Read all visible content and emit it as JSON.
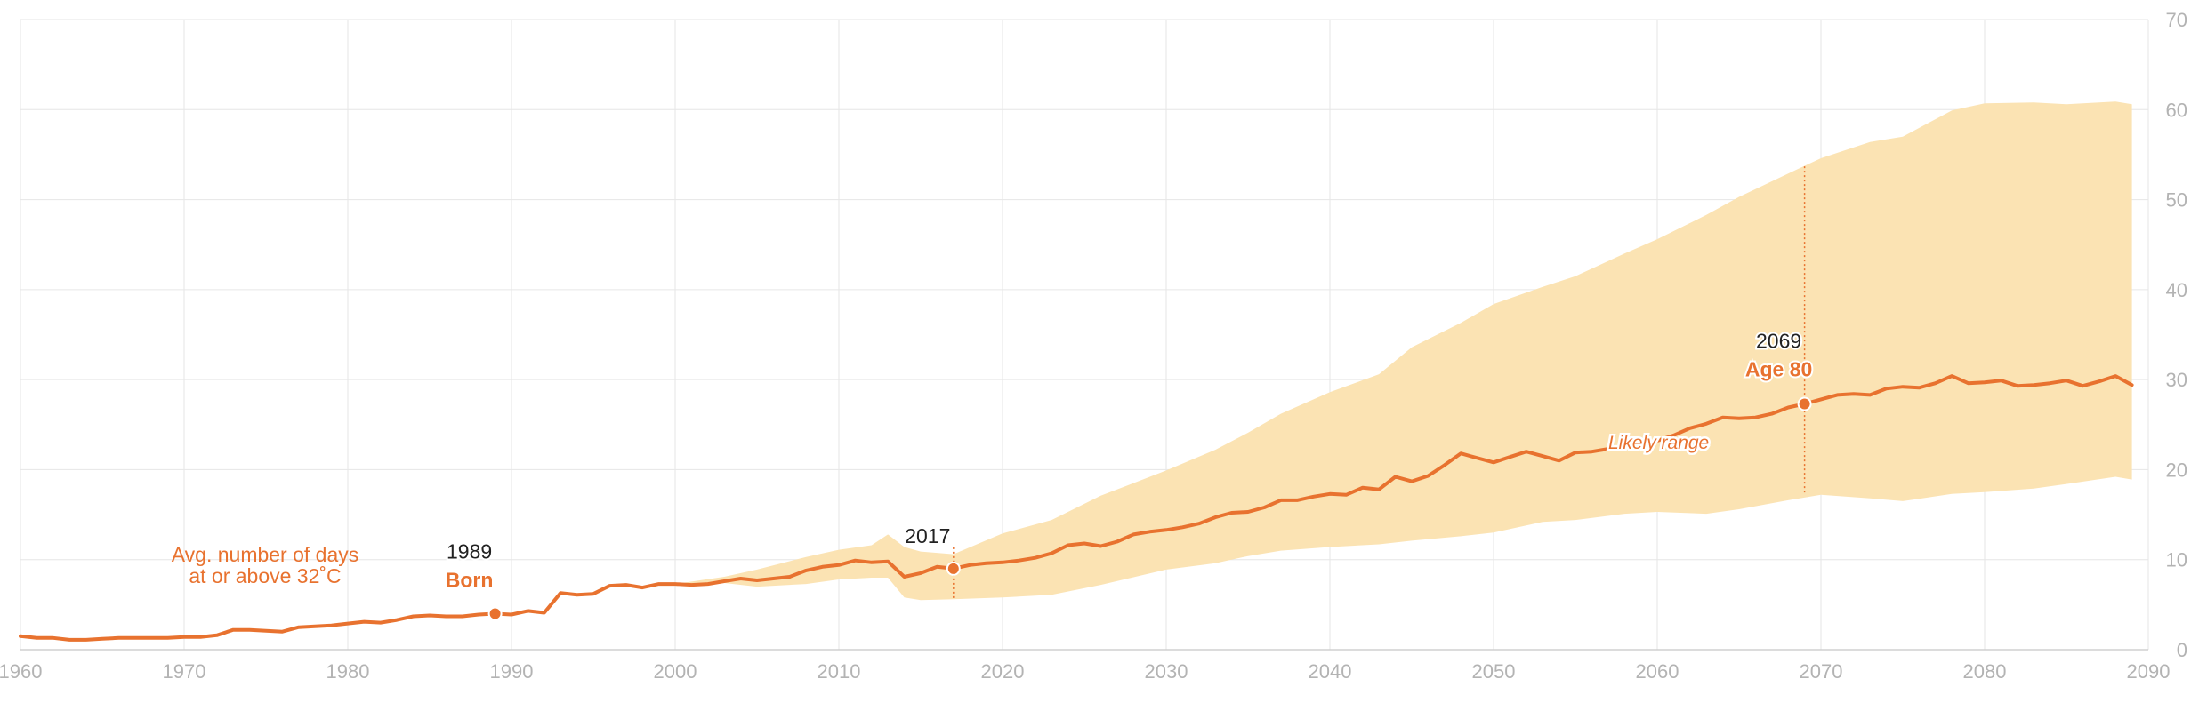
{
  "colors": {
    "line": "#e8722f",
    "band": "#fbe3b3",
    "grid": "#e6e6e6",
    "axis_text": "#b3b3b3",
    "annotation_text": "#222222",
    "white": "#ffffff"
  },
  "chart_data": {
    "type": "line",
    "x_axis": {
      "range": [
        1960,
        2090
      ],
      "ticks": [
        1960,
        1970,
        1980,
        1990,
        2000,
        2010,
        2020,
        2030,
        2040,
        2050,
        2060,
        2070,
        2080,
        2090
      ],
      "tick_labels": [
        "1960",
        "1970",
        "1980",
        "1990",
        "2000",
        "2010",
        "2020",
        "2030",
        "2040",
        "2050",
        "2060",
        "2070",
        "2080",
        "2090"
      ]
    },
    "y_axis": {
      "range": [
        0,
        70
      ],
      "position": "right",
      "ticks": [
        0,
        10,
        20,
        30,
        40,
        50,
        60,
        70
      ],
      "tick_labels": [
        "0",
        "10",
        "20",
        "30",
        "40",
        "50",
        "60",
        "70"
      ]
    },
    "grid": true,
    "series": [
      {
        "name": "Avg. number of days at or above 32˚C",
        "label_lines": [
          "Avg. number of days",
          "at or above 32˚C"
        ],
        "x": [
          1960,
          1961,
          1962,
          1963,
          1964,
          1965,
          1966,
          1967,
          1968,
          1969,
          1970,
          1971,
          1972,
          1973,
          1974,
          1975,
          1976,
          1977,
          1978,
          1979,
          1980,
          1981,
          1982,
          1983,
          1984,
          1985,
          1986,
          1987,
          1988,
          1989,
          1990,
          1991,
          1992,
          1993,
          1994,
          1995,
          1996,
          1997,
          1998,
          1999,
          2000,
          2001,
          2002,
          2003,
          2004,
          2005,
          2006,
          2007,
          2008,
          2009,
          2010,
          2011,
          2012,
          2013,
          2014,
          2015,
          2016,
          2017,
          2018,
          2019,
          2020,
          2021,
          2022,
          2023,
          2024,
          2025,
          2026,
          2027,
          2028,
          2029,
          2030,
          2031,
          2032,
          2033,
          2034,
          2035,
          2036,
          2037,
          2038,
          2039,
          2040,
          2041,
          2042,
          2043,
          2044,
          2045,
          2046,
          2047,
          2048,
          2049,
          2050,
          2051,
          2052,
          2053,
          2054,
          2055,
          2056,
          2057,
          2058,
          2059,
          2060,
          2061,
          2062,
          2063,
          2064,
          2065,
          2066,
          2067,
          2068,
          2069,
          2070,
          2071,
          2072,
          2073,
          2074,
          2075,
          2076,
          2077,
          2078,
          2079,
          2080,
          2081,
          2082,
          2083,
          2084,
          2085,
          2086,
          2087,
          2088,
          2089
        ],
        "y": [
          1.5,
          1.3,
          1.3,
          1.1,
          1.1,
          1.2,
          1.3,
          1.3,
          1.3,
          1.3,
          1.4,
          1.4,
          1.6,
          2.2,
          2.2,
          2.1,
          2.0,
          2.5,
          2.6,
          2.7,
          2.9,
          3.1,
          3.0,
          3.3,
          3.7,
          3.8,
          3.7,
          3.7,
          3.9,
          4.0,
          3.9,
          4.3,
          4.1,
          6.3,
          6.1,
          6.2,
          7.1,
          7.2,
          6.9,
          7.3,
          7.3,
          7.2,
          7.3,
          7.6,
          7.9,
          7.7,
          7.9,
          8.1,
          8.8,
          9.2,
          9.4,
          9.9,
          9.7,
          9.8,
          8.1,
          8.5,
          9.2,
          9.0,
          9.4,
          9.6,
          9.7,
          9.9,
          10.2,
          10.7,
          11.6,
          11.8,
          11.5,
          12.0,
          12.8,
          13.1,
          13.3,
          13.6,
          14.0,
          14.7,
          15.2,
          15.3,
          15.8,
          16.6,
          16.6,
          17.0,
          17.3,
          17.2,
          18.0,
          17.8,
          19.2,
          18.7,
          19.3,
          20.5,
          21.8,
          21.3,
          20.8,
          21.4,
          22.0,
          21.5,
          21.0,
          21.9,
          22.0,
          22.3,
          22.5,
          22.8,
          23.2,
          23.8,
          24.6,
          25.1,
          25.8,
          25.7,
          25.8,
          26.2,
          26.9,
          27.3,
          27.8,
          28.3,
          28.4,
          28.3,
          29.0,
          29.2,
          29.1,
          29.6,
          30.4,
          29.6,
          29.7,
          29.9,
          29.3,
          29.4,
          29.6,
          29.9,
          29.3,
          29.8,
          30.4,
          29.4
        ]
      }
    ],
    "band": {
      "label": "Likely range",
      "x": [
        2000,
        2003,
        2005,
        2008,
        2010,
        2012,
        2013,
        2014,
        2015,
        2017,
        2020,
        2023,
        2026,
        2030,
        2033,
        2035,
        2037,
        2040,
        2043,
        2045,
        2048,
        2050,
        2053,
        2055,
        2058,
        2060,
        2063,
        2065,
        2068,
        2070,
        2073,
        2075,
        2078,
        2080,
        2083,
        2085,
        2088,
        2089
      ],
      "upper": [
        7.3,
        8.1,
        8.9,
        10.3,
        11.1,
        11.6,
        12.8,
        11.4,
        10.9,
        10.6,
        12.9,
        14.4,
        17.1,
        19.9,
        22.2,
        24.1,
        26.2,
        28.6,
        30.6,
        33.6,
        36.3,
        38.4,
        40.3,
        41.5,
        44.0,
        45.6,
        48.3,
        50.3,
        52.9,
        54.6,
        56.4,
        57.0,
        59.9,
        60.7,
        60.8,
        60.6,
        60.9,
        60.6
      ],
      "lower": [
        7.3,
        7.4,
        7.0,
        7.3,
        7.8,
        8.0,
        8.0,
        5.8,
        5.5,
        5.6,
        5.8,
        6.1,
        7.2,
        8.9,
        9.6,
        10.4,
        11.0,
        11.4,
        11.7,
        12.1,
        12.6,
        13.0,
        14.2,
        14.4,
        15.1,
        15.3,
        15.1,
        15.6,
        16.6,
        17.2,
        16.8,
        16.5,
        17.3,
        17.5,
        17.9,
        18.4,
        19.2,
        18.9
      ]
    },
    "annotations": [
      {
        "x": 1989,
        "y": 4.0,
        "year": "1989",
        "label": "Born"
      },
      {
        "x": 2017,
        "y": 9.0,
        "year": "2017",
        "label": ""
      },
      {
        "x": 2069,
        "y": 27.3,
        "year": "2069",
        "label": "Age 80",
        "upper": 53.7,
        "lower": 17.2
      }
    ]
  }
}
